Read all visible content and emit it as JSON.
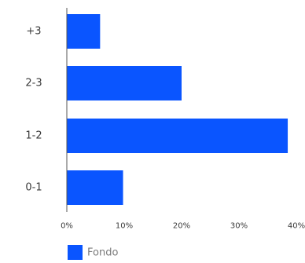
{
  "chart_data": {
    "type": "bar",
    "orientation": "horizontal",
    "categories": [
      "+3",
      "2-3",
      "1-2",
      "0-1"
    ],
    "series": [
      {
        "name": "Fondo",
        "values": [
          5.8,
          20.0,
          38.5,
          9.8
        ],
        "color": "#0a55ff"
      }
    ],
    "xlim": [
      0,
      40
    ],
    "xticks": [
      "0%",
      "10%",
      "20%",
      "30%",
      "40%"
    ],
    "tick_values": [
      0,
      10,
      20,
      30,
      40
    ],
    "grid": false,
    "legend_position": "bottom-left",
    "title": "",
    "xlabel": "",
    "ylabel": ""
  }
}
